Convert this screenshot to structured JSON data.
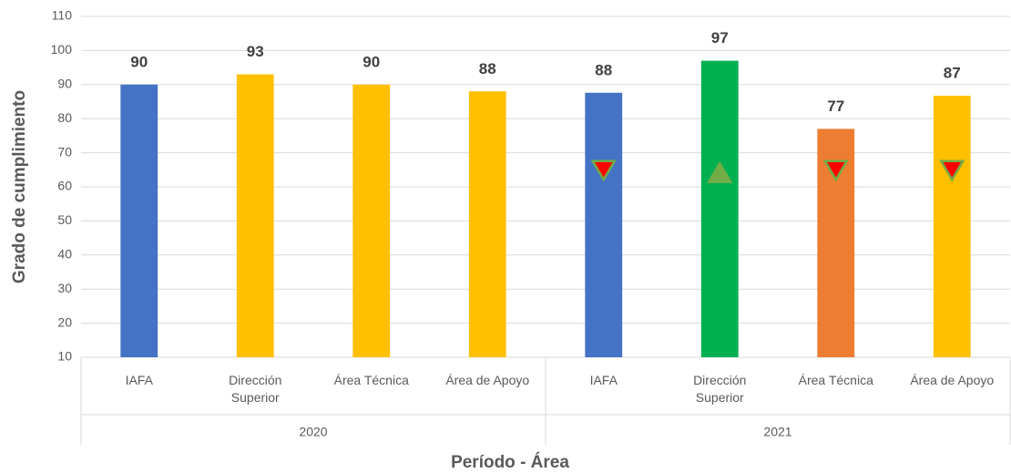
{
  "chart_data": {
    "type": "bar",
    "x_label": "Período - Área",
    "y_label": "Grado de cumplimiento",
    "groups": [
      {
        "name": "2020",
        "categories": [
          "IAFA",
          "Dirección Superior",
          "Área Técnica",
          "Área de Apoyo"
        ]
      },
      {
        "name": "2021",
        "categories": [
          "IAFA",
          "Dirección Superior",
          "Área Técnica",
          "Área de Apoyo"
        ]
      }
    ],
    "values": [
      90,
      93,
      90,
      88,
      87.6,
      97,
      77,
      86.7
    ],
    "value_labels": [
      "90",
      "93",
      "90",
      "88",
      "88",
      "97",
      "77",
      "87"
    ],
    "colors": [
      "#4472c4",
      "#ffc000",
      "#ffc000",
      "#ffc000",
      "#4472c4",
      "#00b050",
      "#ed7d31",
      "#ffc000"
    ],
    "markers": {
      "values": [
        null,
        null,
        null,
        null,
        65,
        64,
        65,
        65
      ],
      "directions": [
        null,
        null,
        null,
        null,
        "down",
        "up",
        "down",
        "down"
      ],
      "colors": {
        "down": "#ff0000",
        "up": "#70ad47"
      },
      "edge_color": "#70ad47"
    },
    "ylim": [
      10,
      110
    ],
    "yticks": [
      10,
      20,
      30,
      40,
      50,
      60,
      70,
      80,
      90,
      100,
      110
    ],
    "grid": true
  }
}
